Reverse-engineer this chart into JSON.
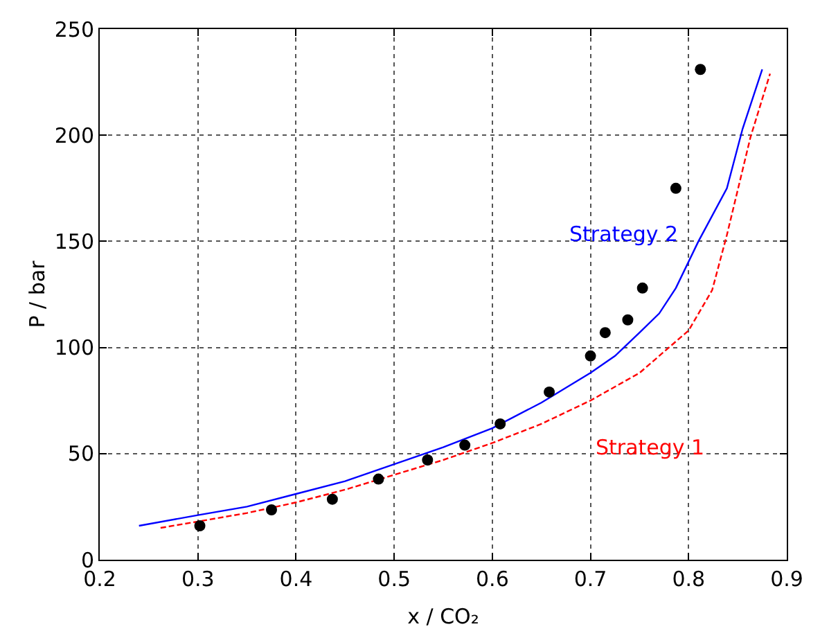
{
  "chart_data": {
    "type": "line",
    "xlabel": "x / CO₂",
    "ylabel": "P / bar",
    "xlim": [
      0.2,
      0.9
    ],
    "xticks": [
      0.2,
      0.3,
      0.4,
      0.5,
      0.6,
      0.7,
      0.8,
      0.9
    ],
    "ylim": [
      0,
      250
    ],
    "yticks": [
      0,
      50,
      100,
      150,
      200,
      250
    ],
    "grid": true,
    "legend": false,
    "series": [
      {
        "name": "Strategy 1",
        "color": "#ff0000",
        "line_style": "dashed",
        "marker": "none",
        "x": [
          0.262,
          0.3,
          0.35,
          0.4,
          0.45,
          0.5,
          0.55,
          0.6,
          0.65,
          0.7,
          0.75,
          0.8,
          0.824,
          0.839,
          0.863,
          0.883
        ],
        "values": [
          15,
          18,
          22,
          27,
          33,
          40,
          47,
          55,
          64,
          75,
          88,
          108,
          127,
          153,
          199,
          229
        ]
      },
      {
        "name": "Strategy 2",
        "color": "#0000ff",
        "line_style": "solid",
        "marker": "none",
        "x": [
          0.24,
          0.3,
          0.35,
          0.4,
          0.45,
          0.5,
          0.55,
          0.6,
          0.65,
          0.7,
          0.725,
          0.75,
          0.77,
          0.787,
          0.81,
          0.839,
          0.855,
          0.875
        ],
        "values": [
          16,
          21,
          25,
          31,
          37,
          45,
          53,
          62,
          74,
          88,
          96,
          107,
          116,
          128,
          150,
          175,
          203,
          231
        ]
      },
      {
        "type": "scatter",
        "color": "#000000",
        "marker": "circle",
        "x": [
          0.302,
          0.375,
          0.437,
          0.484,
          0.534,
          0.572,
          0.608,
          0.658,
          0.7,
          0.715,
          0.738,
          0.753,
          0.787,
          0.812
        ],
        "values": [
          16,
          23.5,
          28.5,
          38,
          47,
          54,
          64,
          79,
          96,
          107,
          113,
          128,
          175,
          231
        ]
      }
    ]
  }
}
